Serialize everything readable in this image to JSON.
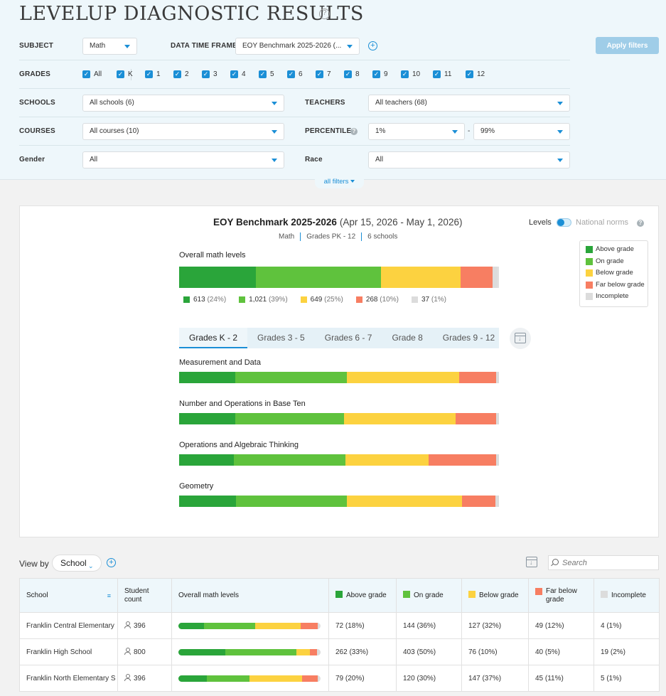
{
  "colors": {
    "above": "#2aa53a",
    "on": "#5fc23d",
    "below": "#fcd240",
    "far_below": "#f77e62",
    "incomplete": "#dcdcdc",
    "accent": "#1b8fd6"
  },
  "header": {
    "title": "LEVELUP DIAGNOSTIC RESULTS",
    "help_glyph": "?"
  },
  "filters": {
    "subject_label": "SUBJECT",
    "subject_value": "Math",
    "timeframe_label": "DATA TIME FRAME",
    "timeframe_value": "EOY Benchmark 2025-2026 (...",
    "grades_label": "GRADES",
    "grades": [
      "All",
      "K",
      "1",
      "2",
      "3",
      "4",
      "5",
      "6",
      "7",
      "8",
      "9",
      "10",
      "11",
      "12"
    ],
    "schools_label": "SCHOOLS",
    "schools_value": "All schools (6)",
    "teachers_label": "TEACHERS",
    "teachers_value": "All teachers (68)",
    "courses_label": "COURSES",
    "courses_value": "All courses (10)",
    "percentile_label": "PERCENTILE",
    "percentile_from": "1%",
    "percentile_dash": "-",
    "percentile_to": "99%",
    "gender_label": "Gender",
    "gender_value": "All",
    "race_label": "Race",
    "race_value": "All",
    "apply_label": "Apply filters",
    "all_filters_label": "all filters"
  },
  "benchmark": {
    "title": "EOY Benchmark 2025-2026",
    "dates": "(Apr 15, 2026 - May 1, 2026)",
    "subject": "Math",
    "grades": "Grades PK - 12",
    "schools": "6 schools",
    "levels_label": "Levels",
    "norms_label": "National norms"
  },
  "legend": [
    "Above grade",
    "On grade",
    "Below grade",
    "Far below grade",
    "Incomplete"
  ],
  "overall": {
    "label": "Overall math levels",
    "segments": [
      {
        "count": "613",
        "pct": "(24%)",
        "fraction": 0.24
      },
      {
        "count": "1,021",
        "pct": "(39%)",
        "fraction": 0.39
      },
      {
        "count": "649",
        "pct": "(25%)",
        "fraction": 0.25
      },
      {
        "count": "268",
        "pct": "(10%)",
        "fraction": 0.1
      },
      {
        "count": "37",
        "pct": "(1%)",
        "fraction": 0.015
      }
    ]
  },
  "grade_tabs": [
    "Grades K - 2",
    "Grades 3 - 5",
    "Grades 6 - 7",
    "Grade 8",
    "Grades 9 - 12"
  ],
  "domains": [
    {
      "name": "Measurement and Data",
      "fractions": [
        0.175,
        0.35,
        0.35,
        0.115,
        0.01
      ]
    },
    {
      "name": "Number and Operations in Base Ten",
      "fractions": [
        0.175,
        0.34,
        0.35,
        0.125,
        0.01
      ]
    },
    {
      "name": "Operations and Algebraic Thinking",
      "fractions": [
        0.17,
        0.35,
        0.26,
        0.21,
        0.01
      ]
    },
    {
      "name": "Geometry",
      "fractions": [
        0.178,
        0.347,
        0.36,
        0.105,
        0.01
      ]
    }
  ],
  "table": {
    "view_by_label": "View by",
    "view_by_value": "School",
    "search_placeholder": "Search",
    "headers": {
      "school": "School",
      "student_count": "Student count",
      "overall": "Overall math levels",
      "above": "Above grade",
      "on": "On grade",
      "below": "Below grade",
      "far_below": "Far below grade",
      "incomplete": "Incomplete"
    },
    "rows": [
      {
        "school": "Franklin Central Elementary",
        "count": "396",
        "fractions": [
          0.18,
          0.36,
          0.32,
          0.12,
          0.01
        ],
        "above": "72 (18%)",
        "on": "144 (36%)",
        "below": "127 (32%)",
        "far_below": "49 (12%)",
        "incomplete": "4 (1%)"
      },
      {
        "school": "Franklin High School",
        "count": "800",
        "fractions": [
          0.33,
          0.5,
          0.095,
          0.05,
          0.025
        ],
        "above": "262 (33%)",
        "on": "403 (50%)",
        "below": "76 (10%)",
        "far_below": "40 (5%)",
        "incomplete": "19 (2%)"
      },
      {
        "school": "Franklin North Elementary S",
        "count": "396",
        "fractions": [
          0.2,
          0.3,
          0.37,
          0.11,
          0.01
        ],
        "above": "79 (20%)",
        "on": "120 (30%)",
        "below": "147 (37%)",
        "far_below": "45 (11%)",
        "incomplete": "5 (1%)"
      }
    ]
  }
}
